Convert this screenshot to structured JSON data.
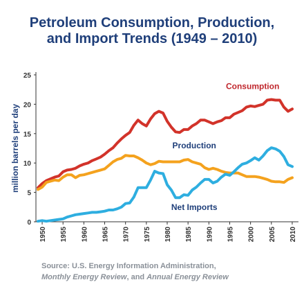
{
  "chart_data": {
    "type": "line",
    "title_lines": [
      "Petroleum Consumption, Production,",
      "and Import Trends (1949 – 2010)"
    ],
    "xlabel": "",
    "ylabel": "million barrels per day",
    "xlim": [
      1949,
      2010
    ],
    "ylim": [
      0,
      25
    ],
    "yticks": [
      0,
      5,
      10,
      15,
      20,
      25
    ],
    "xticks": [
      1950,
      1955,
      1960,
      1965,
      1970,
      1975,
      1980,
      1985,
      1990,
      1995,
      2000,
      2005,
      2010
    ],
    "grid": false,
    "series": [
      {
        "name": "Consumption",
        "color": "#d2332a",
        "x": [
          1949,
          1950,
          1951,
          1952,
          1953,
          1954,
          1955,
          1956,
          1957,
          1958,
          1959,
          1960,
          1961,
          1962,
          1963,
          1964,
          1965,
          1966,
          1967,
          1968,
          1969,
          1970,
          1971,
          1972,
          1973,
          1974,
          1975,
          1976,
          1977,
          1978,
          1979,
          1980,
          1981,
          1982,
          1983,
          1984,
          1985,
          1986,
          1987,
          1988,
          1989,
          1990,
          1991,
          1992,
          1993,
          1994,
          1995,
          1996,
          1997,
          1998,
          1999,
          2000,
          2001,
          2002,
          2003,
          2004,
          2005,
          2006,
          2007,
          2008,
          2009,
          2010
        ],
        "values": [
          5.8,
          6.5,
          7.0,
          7.3,
          7.6,
          7.8,
          8.5,
          8.8,
          8.9,
          9.1,
          9.5,
          9.8,
          10.0,
          10.4,
          10.7,
          11.0,
          11.5,
          12.1,
          12.6,
          13.4,
          14.1,
          14.7,
          15.2,
          16.4,
          17.3,
          16.7,
          16.3,
          17.5,
          18.4,
          18.8,
          18.5,
          17.1,
          16.1,
          15.3,
          15.2,
          15.7,
          15.7,
          16.3,
          16.7,
          17.3,
          17.3,
          17.0,
          16.7,
          17.0,
          17.2,
          17.7,
          17.7,
          18.3,
          18.6,
          18.9,
          19.5,
          19.7,
          19.6,
          19.8,
          20.0,
          20.7,
          20.8,
          20.7,
          20.7,
          19.5,
          18.8,
          19.2
        ]
      },
      {
        "name": "Production",
        "color": "#f4a21e",
        "x": [
          1949,
          1950,
          1951,
          1952,
          1953,
          1954,
          1955,
          1956,
          1957,
          1958,
          1959,
          1960,
          1961,
          1962,
          1963,
          1964,
          1965,
          1966,
          1967,
          1968,
          1969,
          1970,
          1971,
          1972,
          1973,
          1974,
          1975,
          1976,
          1977,
          1978,
          1979,
          1980,
          1981,
          1982,
          1983,
          1984,
          1985,
          1986,
          1987,
          1988,
          1989,
          1990,
          1991,
          1992,
          1993,
          1994,
          1995,
          1996,
          1997,
          1998,
          1999,
          2000,
          2001,
          2002,
          2003,
          2004,
          2005,
          2006,
          2007,
          2008,
          2009,
          2010
        ],
        "values": [
          5.5,
          5.9,
          6.7,
          6.9,
          7.1,
          7.0,
          7.6,
          8.0,
          8.0,
          7.5,
          7.9,
          8.0,
          8.2,
          8.4,
          8.6,
          8.8,
          9.0,
          9.6,
          10.2,
          10.6,
          10.8,
          11.3,
          11.2,
          11.2,
          10.9,
          10.5,
          10.0,
          9.7,
          9.9,
          10.3,
          10.2,
          10.2,
          10.2,
          10.2,
          10.2,
          10.5,
          10.6,
          10.2,
          10.0,
          9.8,
          9.2,
          8.9,
          9.1,
          8.9,
          8.6,
          8.4,
          8.3,
          8.3,
          8.3,
          8.0,
          7.7,
          7.7,
          7.7,
          7.6,
          7.4,
          7.2,
          6.9,
          6.8,
          6.8,
          6.7,
          7.2,
          7.5
        ]
      },
      {
        "name": "Net Imports",
        "color": "#2eaee0",
        "x": [
          1949,
          1950,
          1951,
          1952,
          1953,
          1954,
          1955,
          1956,
          1957,
          1958,
          1959,
          1960,
          1961,
          1962,
          1963,
          1964,
          1965,
          1966,
          1967,
          1968,
          1969,
          1970,
          1971,
          1972,
          1973,
          1974,
          1975,
          1976,
          1977,
          1978,
          1979,
          1980,
          1981,
          1982,
          1983,
          1984,
          1985,
          1986,
          1987,
          1988,
          1989,
          1990,
          1991,
          1992,
          1993,
          1994,
          1995,
          1996,
          1997,
          1998,
          1999,
          2000,
          2001,
          2002,
          2003,
          2004,
          2005,
          2006,
          2007,
          2008,
          2009,
          2010
        ],
        "values": [
          0.1,
          0.2,
          0.1,
          0.2,
          0.3,
          0.4,
          0.5,
          0.8,
          1.0,
          1.2,
          1.3,
          1.4,
          1.5,
          1.6,
          1.6,
          1.7,
          1.8,
          2.0,
          2.0,
          2.2,
          2.5,
          3.1,
          3.2,
          4.2,
          5.8,
          5.8,
          5.8,
          7.1,
          8.6,
          8.3,
          8.2,
          6.3,
          5.4,
          4.1,
          4.1,
          4.6,
          4.5,
          5.4,
          5.9,
          6.6,
          7.2,
          7.2,
          6.6,
          6.9,
          7.6,
          8.1,
          7.9,
          8.5,
          9.2,
          9.8,
          10.0,
          10.4,
          10.9,
          10.5,
          11.2,
          12.1,
          12.6,
          12.4,
          12.0,
          11.1,
          9.7,
          9.4
        ]
      }
    ],
    "annotations": [
      {
        "text": "Consumption",
        "x": 2000.5,
        "y": 22.6,
        "color": "#c0272d"
      },
      {
        "text": "Production",
        "x": 1986.5,
        "y": 12.5,
        "color": "#1f3f7a"
      },
      {
        "text": "Net Imports",
        "x": 1986.5,
        "y": 2.0,
        "color": "#1f3f7a"
      }
    ]
  },
  "source": {
    "line1": "Source: U.S. Energy Information Administration,",
    "line2_italic_a": "Monthly Energy Review",
    "line2_mid": ", and ",
    "line2_italic_b": "Annual Energy Review"
  },
  "colors": {
    "text_primary": "#1f3f7a",
    "axis": "#333333",
    "source_text": "#8a9098"
  }
}
